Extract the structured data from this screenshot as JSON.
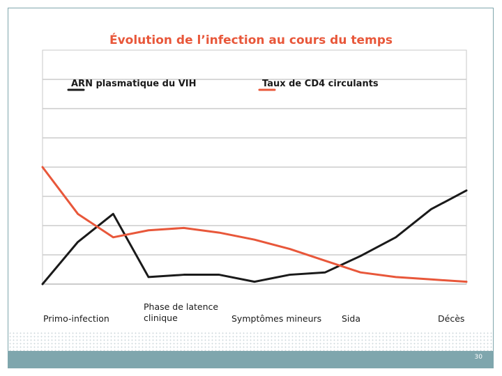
{
  "chart_data": {
    "type": "line",
    "title": "Évolution de l’infection au cours du temps",
    "categories": [
      "Primo-infection",
      "Phase de latence clinique",
      "Symptômes mineurs",
      "Sida",
      "Décès"
    ],
    "x": [
      0,
      1,
      2,
      3,
      4,
      5,
      6,
      7,
      8,
      9,
      10,
      11,
      12
    ],
    "ylim": [
      0,
      10
    ],
    "grid": true,
    "legend": "top",
    "series": [
      {
        "name": "ARN plasmatique du VIH",
        "color": "#1a1a1a",
        "values": [
          0,
          1.8,
          3.0,
          0.3,
          0.4,
          0.4,
          0.1,
          0.4,
          0.5,
          1.2,
          2.0,
          3.2,
          4.0
        ]
      },
      {
        "name": "Taux de CD4 circulants",
        "color": "#e8573a",
        "values": [
          5.0,
          3.0,
          2.0,
          2.3,
          2.4,
          2.2,
          1.9,
          1.5,
          1.0,
          0.5,
          0.3,
          0.2,
          0.1
        ]
      }
    ]
  },
  "footer": {
    "page_number": "30"
  }
}
